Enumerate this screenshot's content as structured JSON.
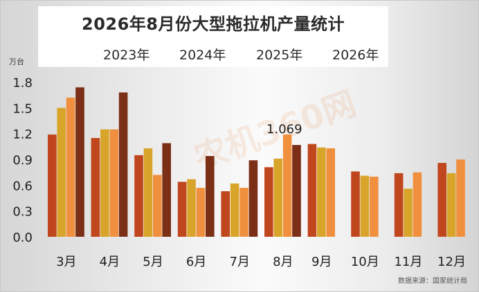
{
  "chart_data": {
    "type": "bar",
    "title": "2026年8月份大型拖拉机产量统计",
    "y_unit": "万台",
    "source": "数据来源：国家统计局",
    "watermark": "农机360网",
    "ylim": [
      0,
      1.8
    ],
    "yticks": [
      "0.0",
      "0.3",
      "0.6",
      "0.9",
      "1.2",
      "1.5",
      "1.8"
    ],
    "categories": [
      "3月",
      "4月",
      "5月",
      "6月",
      "7月",
      "8月",
      "9月",
      "10月",
      "11月",
      "12月"
    ],
    "series": [
      {
        "name": "2023年",
        "color": "#c0461e",
        "values": [
          1.19,
          1.15,
          0.95,
          0.64,
          0.53,
          0.81,
          1.08,
          0.76,
          0.74,
          0.86
        ]
      },
      {
        "name": "2024年",
        "color": "#d8a52a",
        "values": [
          1.5,
          1.25,
          1.03,
          0.67,
          0.62,
          0.91,
          1.04,
          0.71,
          0.56,
          0.74
        ]
      },
      {
        "name": "2025年",
        "color": "#f0903e",
        "values": [
          1.62,
          1.25,
          0.72,
          0.57,
          0.57,
          1.19,
          1.03,
          0.7,
          0.75,
          0.9
        ]
      },
      {
        "name": "2026年",
        "color": "#7a2f16",
        "values": [
          1.74,
          1.68,
          1.09,
          0.94,
          0.89,
          1.069,
          null,
          null,
          null,
          null
        ]
      }
    ],
    "annotation": {
      "text": "1.069",
      "category": "8月"
    },
    "grid": false,
    "legend_position": "top"
  }
}
